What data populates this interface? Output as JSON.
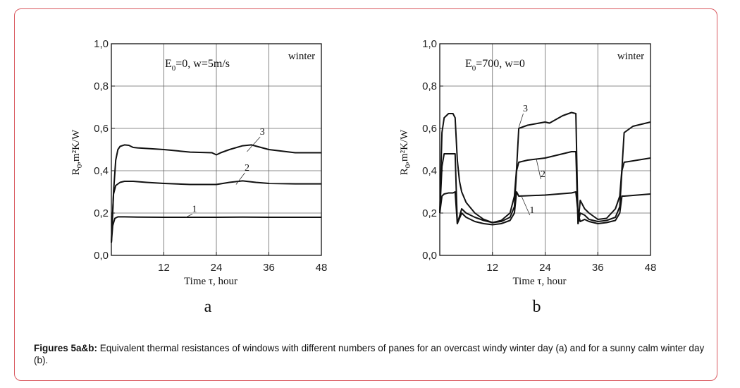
{
  "caption": {
    "bold": "Figures 5a&b:",
    "text": " Equivalent thermal resistances of windows with different numbers of panes for an overcast windy winter day (a) and for a sunny calm winter day (b)."
  },
  "chart_data": [
    {
      "type": "line",
      "panel_label": "a",
      "xlabel": "Time τ, hour",
      "ylabel_main": "R",
      "ylabel_sub": "0",
      "ylabel_rest": ",m²K/W",
      "xlim": [
        0,
        48
      ],
      "ylim": [
        0,
        1.0
      ],
      "xticks": [
        "12",
        "24",
        "36",
        "48"
      ],
      "xtick_values": [
        12,
        24,
        36,
        48
      ],
      "yticks": [
        "0,0",
        "0,2",
        "0,4",
        "0,6",
        "0,8",
        "1,0"
      ],
      "ytick_values": [
        0,
        0.2,
        0.4,
        0.6,
        0.8,
        1.0
      ],
      "grid": true,
      "annotations": {
        "condition_prefix": "E",
        "condition_sub": "0",
        "condition_rest": "=0, w=5m/s",
        "season": "winter"
      },
      "series": [
        {
          "name": "1",
          "x": [
            0,
            0.3,
            0.8,
            1.5,
            3,
            6,
            12,
            18,
            24,
            30,
            36,
            42,
            48
          ],
          "y": [
            0.06,
            0.14,
            0.175,
            0.182,
            0.182,
            0.181,
            0.18,
            0.18,
            0.18,
            0.181,
            0.18,
            0.18,
            0.18
          ]
        },
        {
          "name": "2",
          "x": [
            0,
            0.5,
            1,
            2,
            3,
            5,
            8,
            12,
            18,
            24,
            27,
            30,
            33,
            36,
            42,
            48
          ],
          "y": [
            0.06,
            0.29,
            0.33,
            0.345,
            0.35,
            0.35,
            0.345,
            0.34,
            0.335,
            0.335,
            0.345,
            0.352,
            0.345,
            0.34,
            0.338,
            0.338
          ]
        },
        {
          "name": "3",
          "x": [
            0,
            0.5,
            1,
            1.5,
            2,
            3,
            4,
            5,
            6,
            12,
            18,
            23,
            24,
            25,
            27,
            30,
            32,
            36,
            42,
            48
          ],
          "y": [
            0.06,
            0.3,
            0.45,
            0.5,
            0.515,
            0.522,
            0.52,
            0.51,
            0.508,
            0.5,
            0.488,
            0.485,
            0.475,
            0.485,
            0.5,
            0.518,
            0.522,
            0.5,
            0.485,
            0.485
          ]
        }
      ],
      "curve_labels": [
        {
          "name": "1",
          "x": 19,
          "y": 0.205,
          "lx": 17,
          "ly": 0.18
        },
        {
          "name": "2",
          "x": 31,
          "y": 0.4,
          "lx": 28.5,
          "ly": 0.335
        },
        {
          "name": "3",
          "x": 34.5,
          "y": 0.57,
          "lx": 31,
          "ly": 0.49
        }
      ]
    },
    {
      "type": "line",
      "panel_label": "b",
      "xlabel": "Time τ, hour",
      "ylabel_main": "R",
      "ylabel_sub": "0",
      "ylabel_rest": ",m²K/W",
      "xlim": [
        0,
        48
      ],
      "ylim": [
        0,
        1.0
      ],
      "xticks": [
        "12",
        "24",
        "36",
        "48"
      ],
      "xtick_values": [
        12,
        24,
        36,
        48
      ],
      "yticks": [
        "0,0",
        "0,2",
        "0,4",
        "0,6",
        "0,8",
        "1,0"
      ],
      "ytick_values": [
        0,
        0.2,
        0.4,
        0.6,
        0.8,
        1.0
      ],
      "grid": true,
      "annotations": {
        "condition_prefix": "E",
        "condition_sub": "0",
        "condition_rest": "=700, w=0",
        "season": "winter"
      },
      "series": [
        {
          "name": "1",
          "x": [
            0,
            0.5,
            1,
            2,
            3,
            3.5,
            4,
            5,
            6,
            8,
            10,
            12,
            14,
            16,
            17,
            17.5,
            18,
            24,
            30,
            31,
            31.5,
            32,
            33,
            34,
            36,
            38,
            40,
            41,
            41.5,
            42,
            48
          ],
          "y": [
            0.2,
            0.28,
            0.29,
            0.295,
            0.295,
            0.3,
            0.15,
            0.2,
            0.18,
            0.16,
            0.15,
            0.145,
            0.15,
            0.165,
            0.2,
            0.3,
            0.28,
            0.285,
            0.295,
            0.3,
            0.2,
            0.16,
            0.17,
            0.16,
            0.15,
            0.155,
            0.165,
            0.2,
            0.28,
            0.28,
            0.29
          ]
        },
        {
          "name": "2",
          "x": [
            0,
            0.5,
            1,
            2,
            3,
            3.5,
            4,
            5,
            6,
            8,
            10,
            12,
            14,
            16,
            17,
            17.5,
            18,
            20,
            24,
            30,
            31,
            31.5,
            32,
            33,
            34,
            36,
            38,
            40,
            41,
            41.5,
            42,
            48
          ],
          "y": [
            0.2,
            0.42,
            0.48,
            0.48,
            0.48,
            0.48,
            0.15,
            0.22,
            0.2,
            0.18,
            0.165,
            0.155,
            0.16,
            0.18,
            0.23,
            0.4,
            0.44,
            0.45,
            0.46,
            0.49,
            0.49,
            0.15,
            0.2,
            0.19,
            0.17,
            0.16,
            0.165,
            0.18,
            0.23,
            0.4,
            0.44,
            0.46
          ]
        },
        {
          "name": "3",
          "x": [
            0,
            0.5,
            1,
            2,
            3,
            3.5,
            4,
            4.5,
            5,
            6,
            8,
            10,
            12,
            14,
            16,
            17,
            17.5,
            18,
            20,
            24,
            25,
            28,
            30,
            31,
            31.5,
            32,
            33,
            34,
            36,
            38,
            40,
            41,
            41.5,
            42,
            44,
            48
          ],
          "y": [
            0.2,
            0.58,
            0.65,
            0.67,
            0.67,
            0.65,
            0.45,
            0.35,
            0.3,
            0.25,
            0.2,
            0.17,
            0.155,
            0.165,
            0.2,
            0.28,
            0.41,
            0.6,
            0.615,
            0.63,
            0.625,
            0.66,
            0.675,
            0.67,
            0.15,
            0.26,
            0.22,
            0.2,
            0.17,
            0.175,
            0.22,
            0.28,
            0.41,
            0.58,
            0.61,
            0.63
          ]
        }
      ],
      "curve_labels": [
        {
          "name": "1",
          "x": 21,
          "y": 0.2,
          "lx": 18.5,
          "ly": 0.285
        },
        {
          "name": "2",
          "x": 23.5,
          "y": 0.37,
          "lx": 22,
          "ly": 0.455
        },
        {
          "name": "3",
          "x": 19.5,
          "y": 0.68,
          "lx": 18,
          "ly": 0.605
        }
      ]
    }
  ]
}
